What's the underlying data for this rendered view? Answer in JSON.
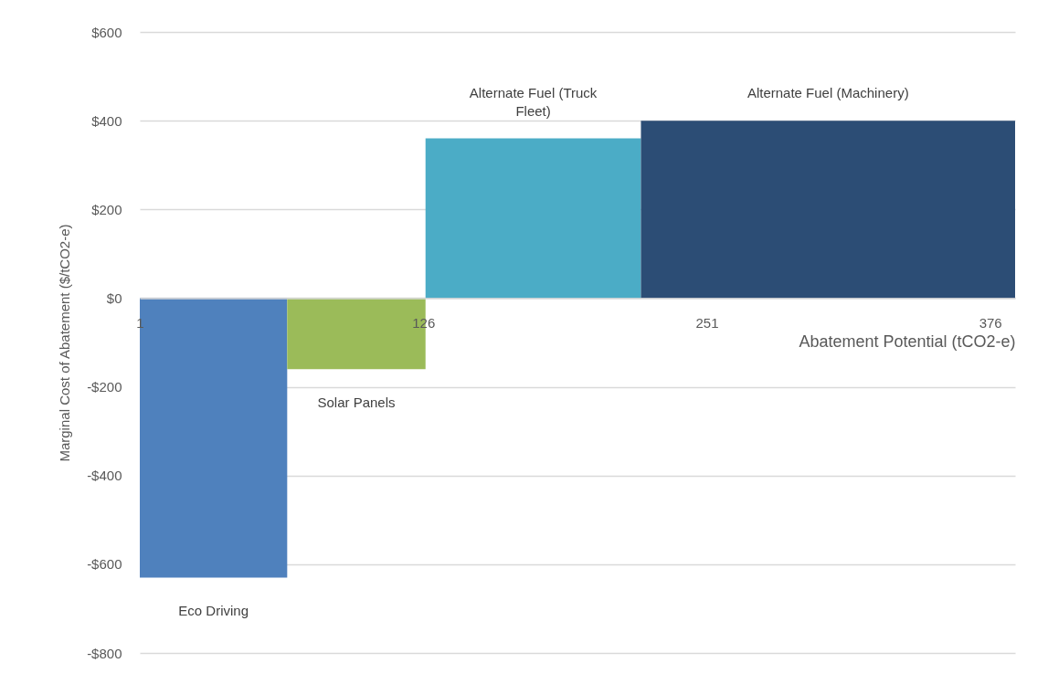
{
  "chart_data": {
    "type": "area",
    "xlabel": "Abatement Potential (tCO2-e)",
    "ylabel": "Marginal Cost of Abatement ($/tCO2-e)",
    "series": [
      {
        "name": "Eco Driving",
        "color": "#4f81bd",
        "x": [
          1,
          66
        ],
        "values": [
          -630,
          -630
        ]
      },
      {
        "name": "Solar Panels",
        "color": "#9bbb59",
        "x": [
          66,
          127
        ],
        "values": [
          -160,
          -160
        ]
      },
      {
        "name": "Alternate Fuel (Truck Fleet)",
        "color": "#4bacc6",
        "x": [
          127,
          222
        ],
        "values": [
          360,
          360
        ]
      },
      {
        "name": "Alternate Fuel (Machinery)",
        "color": "#2c4d75",
        "x": [
          222,
          387
        ],
        "values": [
          400,
          400
        ]
      }
    ],
    "xlim": [
      1,
      387
    ],
    "xticks": [
      1,
      126,
      251,
      376
    ],
    "ylim": [
      -800,
      600
    ],
    "yticks": [
      {
        "value": -800,
        "label": "-$800"
      },
      {
        "value": -600,
        "label": "-$600"
      },
      {
        "value": -400,
        "label": "-$400"
      },
      {
        "value": -200,
        "label": "-$200"
      },
      {
        "value": 0,
        "label": "$0"
      },
      {
        "value": 200,
        "label": "$200"
      },
      {
        "value": 400,
        "label": "$400"
      },
      {
        "value": 600,
        "label": "$600"
      }
    ],
    "grid": "y",
    "legend": false
  }
}
